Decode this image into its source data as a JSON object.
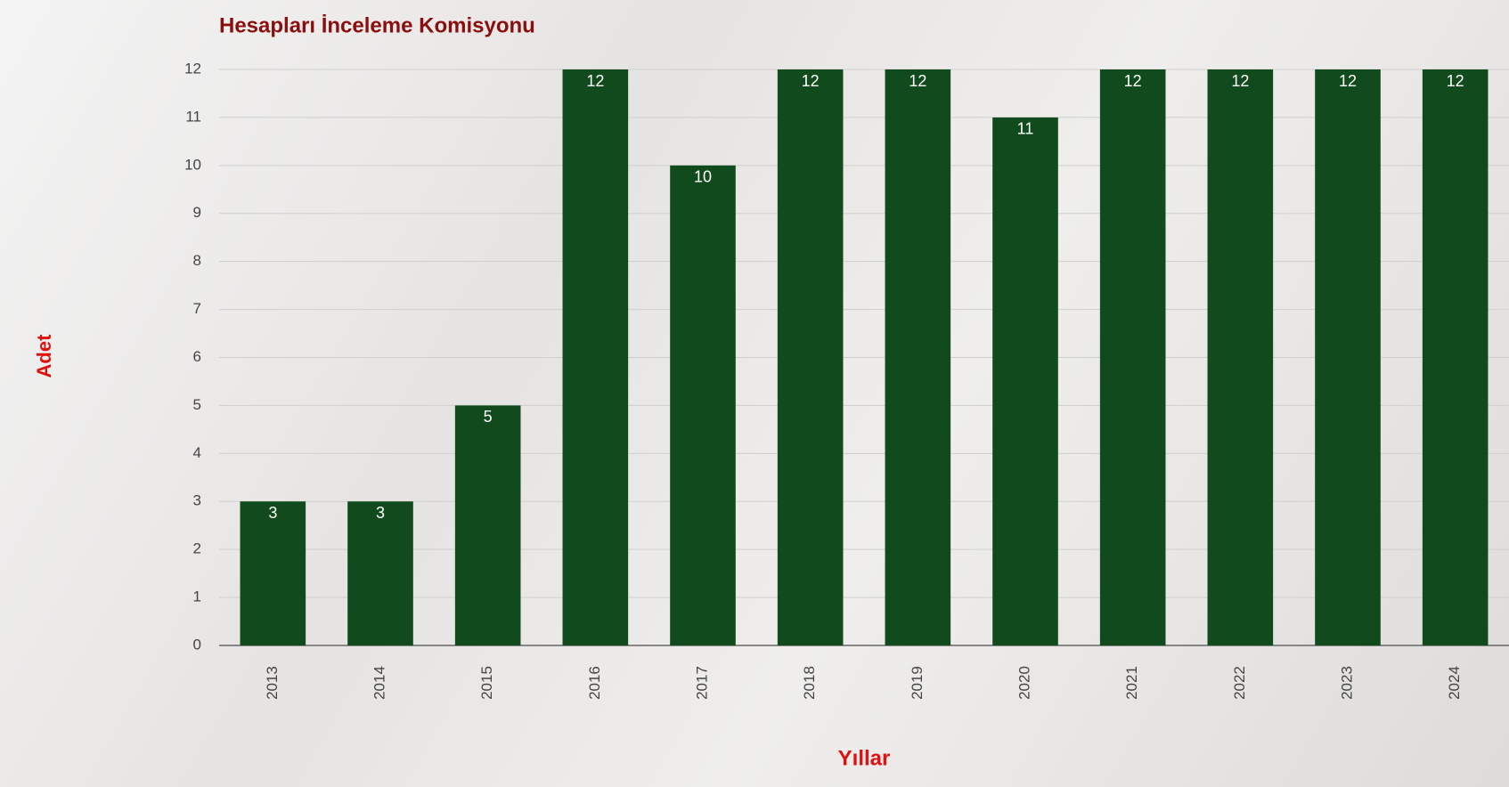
{
  "chart_data": {
    "type": "bar",
    "title": "Hesapları İnceleme Komisyonu",
    "x_label": "Yıllar",
    "y_label": "Adet",
    "categories": [
      "2013",
      "2014",
      "2015",
      "2016",
      "2017",
      "2018",
      "2019",
      "2020",
      "2021",
      "2022",
      "2023",
      "2024"
    ],
    "values": [
      3,
      3,
      5,
      12,
      10,
      12,
      12,
      11,
      12,
      12,
      12,
      12
    ],
    "color": "#114b1d",
    "ylim": [
      0,
      12
    ],
    "yticks": [
      0,
      1,
      2,
      3,
      4,
      5,
      6,
      7,
      8,
      9,
      10,
      11,
      12
    ],
    "grid": true
  }
}
